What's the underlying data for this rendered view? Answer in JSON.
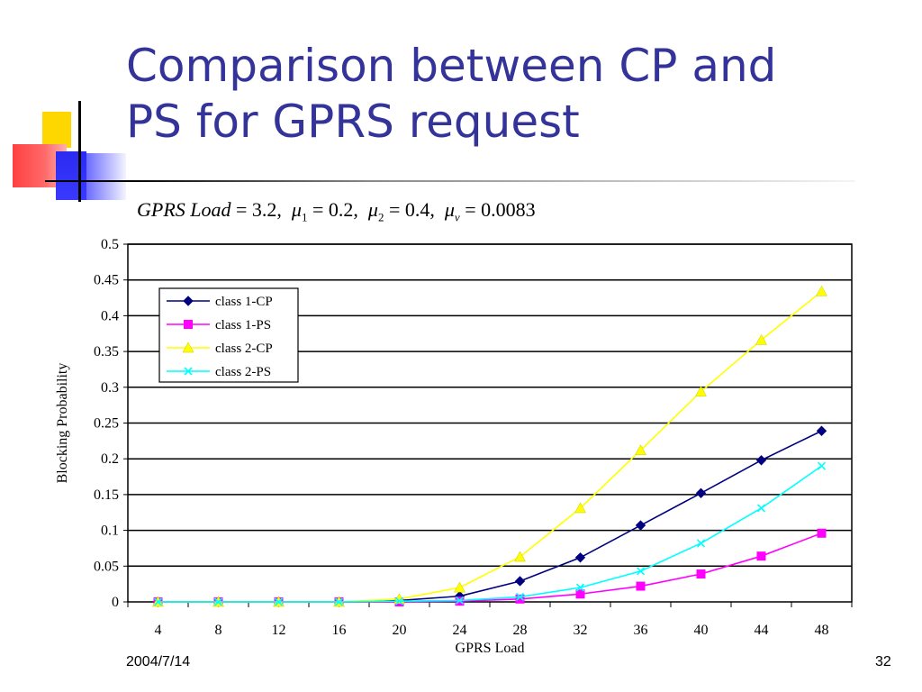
{
  "slide": {
    "title_line1": "Comparison between CP and",
    "title_line2": "PS for GPRS request",
    "formula": {
      "load_label": "GPRS Load",
      "load_value": "3.2",
      "mu1_value": "0.2",
      "mu2_value": "0.4",
      "muv_value": "0.0083"
    },
    "footer_date": "2004/7/14",
    "page_number": "32"
  },
  "colors": {
    "title": "#333399",
    "class1_cp": "#000080",
    "class1_ps": "#FF00FF",
    "class2_cp": "#FFFF00",
    "class2_ps": "#00FFFF"
  },
  "chart_data": {
    "type": "line",
    "xlabel": "GPRS Load",
    "ylabel": "Blocking Probability",
    "x": [
      4,
      8,
      12,
      16,
      20,
      24,
      28,
      32,
      36,
      40,
      44,
      48
    ],
    "ylim": [
      0,
      0.5
    ],
    "yticks": [
      "0",
      "0.05",
      "0.1",
      "0.15",
      "0.2",
      "0.25",
      "0.3",
      "0.35",
      "0.4",
      "0.45",
      "0.5"
    ],
    "grid": true,
    "legend_position": "top-left",
    "series": [
      {
        "name": "class 1-CP",
        "marker": "diamond",
        "color": "#000080",
        "values": [
          0,
          0,
          0,
          0,
          0.002,
          0.008,
          0.029,
          0.062,
          0.107,
          0.152,
          0.198,
          0.239
        ]
      },
      {
        "name": "class 1-PS",
        "marker": "square",
        "color": "#FF00FF",
        "values": [
          0,
          0,
          0,
          0,
          0,
          0.001,
          0.004,
          0.011,
          0.022,
          0.039,
          0.064,
          0.096
        ]
      },
      {
        "name": "class 2-CP",
        "marker": "triangle",
        "color": "#FFFF00",
        "values": [
          0,
          0,
          0,
          0,
          0.004,
          0.02,
          0.063,
          0.131,
          0.212,
          0.294,
          0.366,
          0.434
        ]
      },
      {
        "name": "class 2-PS",
        "marker": "x",
        "color": "#00FFFF",
        "values": [
          0,
          0,
          0,
          0,
          0.001,
          0.002,
          0.007,
          0.02,
          0.043,
          0.082,
          0.131,
          0.19
        ]
      }
    ]
  }
}
